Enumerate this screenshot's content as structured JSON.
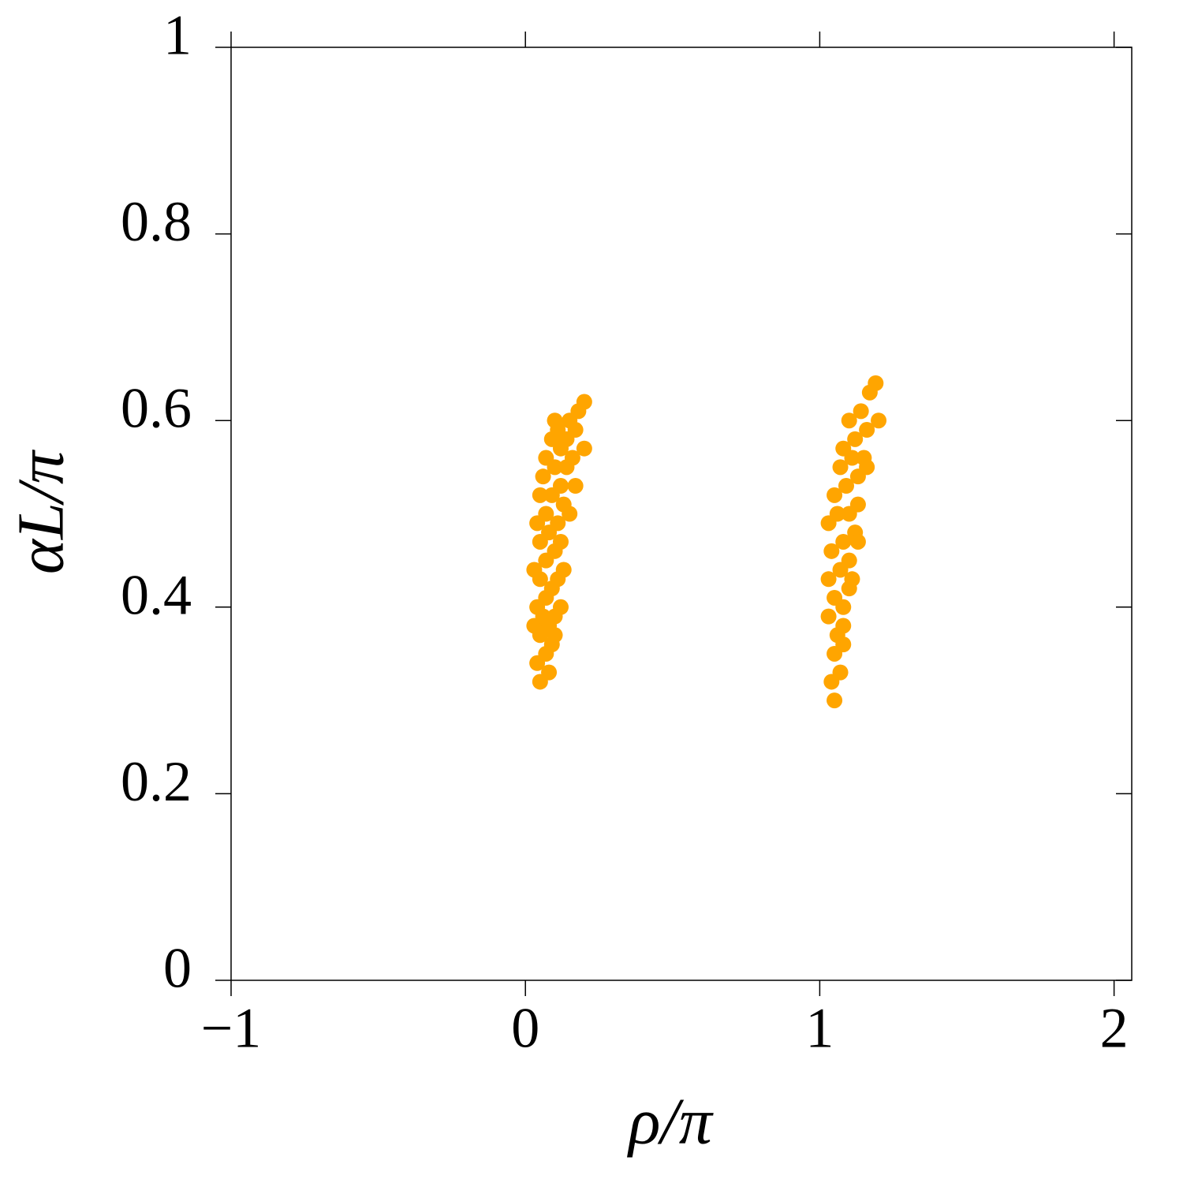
{
  "chart_data": {
    "type": "scatter",
    "xlabel": "ρ/π",
    "ylabel": "αL/π",
    "color": "#ffa500",
    "xlim": [
      -1,
      2.06
    ],
    "ylim": [
      0,
      1
    ],
    "xticks": [
      {
        "value": -1,
        "label": "−1"
      },
      0,
      1,
      2
    ],
    "yticks": [
      0,
      0.2,
      0.4,
      0.6,
      0.8,
      1
    ],
    "x": [
      0.05,
      0.08,
      0.04,
      0.07,
      0.09,
      0.05,
      0.03,
      0.08,
      0.06,
      0.1,
      0.04,
      0.07,
      0.09,
      0.05,
      0.11,
      0.03,
      0.07,
      0.1,
      0.05,
      0.12,
      0.08,
      0.04,
      0.11,
      0.07,
      0.13,
      0.05,
      0.09,
      0.12,
      0.06,
      0.1,
      0.14,
      0.07,
      0.12,
      0.16,
      0.09,
      0.14,
      0.11,
      0.17,
      0.1,
      0.15,
      0.18,
      0.2,
      0.2,
      0.17,
      0.15,
      0.13,
      0.12,
      0.1,
      1.05,
      1.04,
      1.07,
      1.05,
      1.08,
      1.06,
      1.03,
      1.08,
      1.05,
      1.1,
      1.03,
      1.07,
      1.1,
      1.04,
      1.08,
      1.12,
      1.03,
      1.06,
      1.1,
      1.13,
      1.05,
      1.09,
      1.13,
      1.07,
      1.11,
      1.15,
      1.08,
      1.12,
      1.16,
      1.1,
      1.14,
      1.17,
      1.19,
      1.2,
      1.16,
      1.13,
      1.11,
      1.08
    ],
    "y": [
      0.32,
      0.33,
      0.34,
      0.35,
      0.36,
      0.37,
      0.38,
      0.38,
      0.39,
      0.39,
      0.4,
      0.41,
      0.42,
      0.43,
      0.43,
      0.44,
      0.45,
      0.46,
      0.47,
      0.47,
      0.48,
      0.49,
      0.49,
      0.5,
      0.51,
      0.52,
      0.52,
      0.53,
      0.54,
      0.55,
      0.55,
      0.56,
      0.57,
      0.56,
      0.58,
      0.58,
      0.59,
      0.59,
      0.6,
      0.6,
      0.61,
      0.62,
      0.57,
      0.53,
      0.5,
      0.44,
      0.4,
      0.37,
      0.3,
      0.32,
      0.33,
      0.35,
      0.36,
      0.37,
      0.39,
      0.4,
      0.41,
      0.42,
      0.43,
      0.44,
      0.45,
      0.46,
      0.47,
      0.48,
      0.49,
      0.5,
      0.5,
      0.51,
      0.52,
      0.53,
      0.54,
      0.55,
      0.56,
      0.56,
      0.57,
      0.58,
      0.59,
      0.6,
      0.61,
      0.63,
      0.64,
      0.6,
      0.55,
      0.47,
      0.43,
      0.38
    ]
  }
}
